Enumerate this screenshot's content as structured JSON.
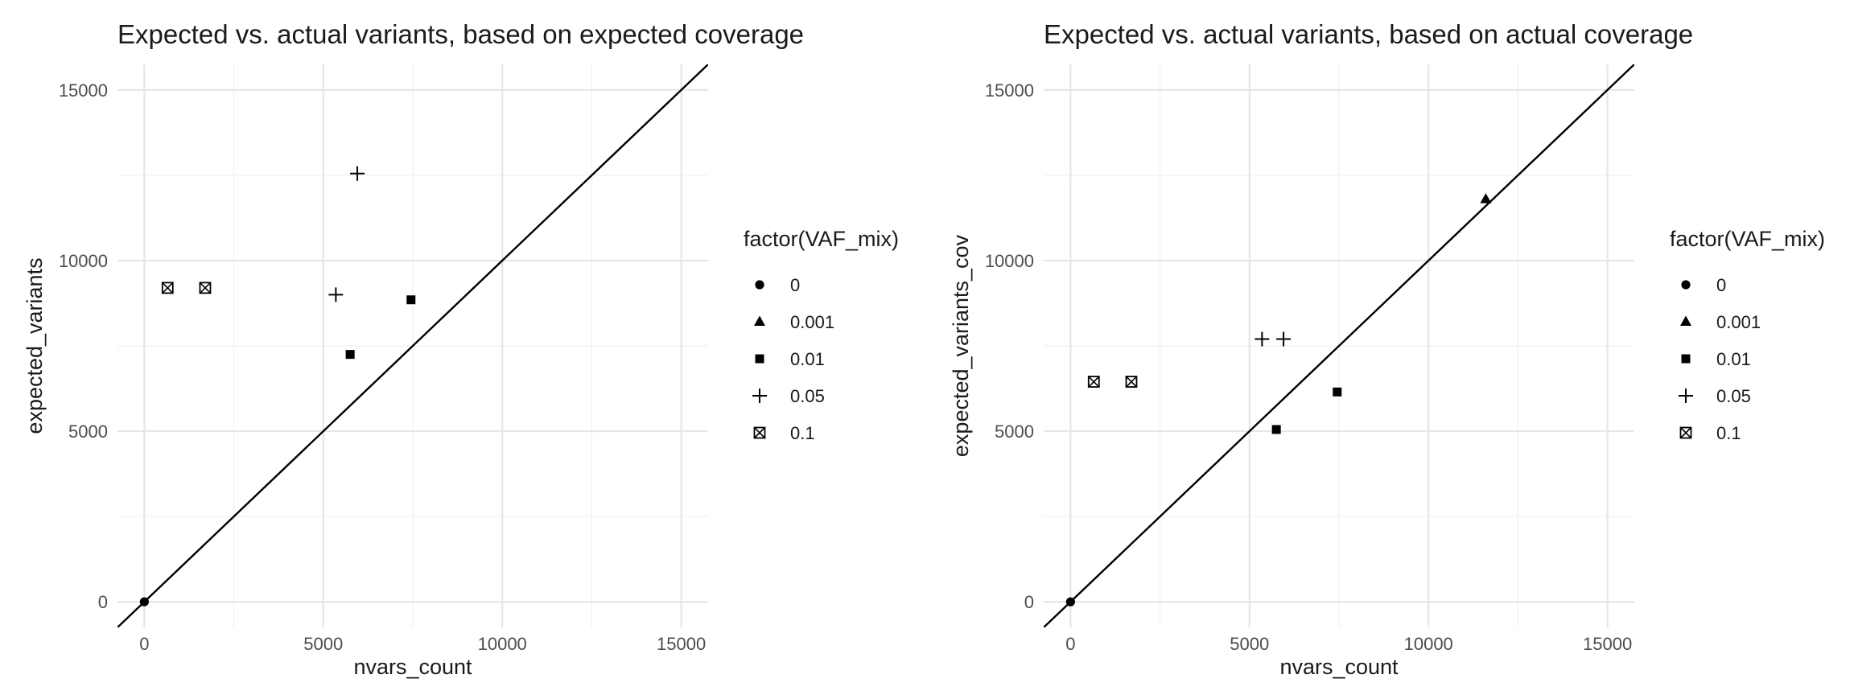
{
  "chart_data": [
    {
      "type": "scatter",
      "title": "Expected vs. actual variants, based on expected coverage",
      "xlabel": "nvars_count",
      "ylabel": "expected_variants",
      "xlim": [
        -750,
        15750
      ],
      "ylim": [
        -750,
        15750
      ],
      "xticks": [
        0,
        5000,
        10000,
        15000
      ],
      "yticks": [
        0,
        5000,
        10000,
        15000
      ],
      "grid": true,
      "reference_line": "y = x",
      "legend": {
        "title": "factor(VAF_mix)",
        "position": "right",
        "entries": [
          {
            "label": "0",
            "shape": "circle"
          },
          {
            "label": "0.001",
            "shape": "triangle"
          },
          {
            "label": "0.01",
            "shape": "square"
          },
          {
            "label": "0.05",
            "shape": "plus"
          },
          {
            "label": "0.1",
            "shape": "square-x"
          }
        ]
      },
      "series": [
        {
          "vaf": "0",
          "points": [
            {
              "x": 0,
              "y": 0
            }
          ]
        },
        {
          "vaf": "0.001",
          "points": []
        },
        {
          "vaf": "0.01",
          "points": [
            {
              "x": 5750,
              "y": 7250
            },
            {
              "x": 7450,
              "y": 8850
            }
          ]
        },
        {
          "vaf": "0.05",
          "points": [
            {
              "x": 5350,
              "y": 9000
            },
            {
              "x": 5950,
              "y": 12550
            }
          ]
        },
        {
          "vaf": "0.1",
          "points": [
            {
              "x": 650,
              "y": 9200
            },
            {
              "x": 1700,
              "y": 9200
            }
          ]
        }
      ]
    },
    {
      "type": "scatter",
      "title": "Expected vs. actual variants, based on actual coverage",
      "xlabel": "nvars_count",
      "ylabel": "expected_variants_cov",
      "xlim": [
        -750,
        15750
      ],
      "ylim": [
        -750,
        15750
      ],
      "xticks": [
        0,
        5000,
        10000,
        15000
      ],
      "yticks": [
        0,
        5000,
        10000,
        15000
      ],
      "grid": true,
      "reference_line": "y = x",
      "legend": {
        "title": "factor(VAF_mix)",
        "position": "right",
        "entries": [
          {
            "label": "0",
            "shape": "circle"
          },
          {
            "label": "0.001",
            "shape": "triangle"
          },
          {
            "label": "0.01",
            "shape": "square"
          },
          {
            "label": "0.05",
            "shape": "plus"
          },
          {
            "label": "0.1",
            "shape": "square-x"
          }
        ]
      },
      "series": [
        {
          "vaf": "0",
          "points": [
            {
              "x": 0,
              "y": 0
            }
          ]
        },
        {
          "vaf": "0.001",
          "points": [
            {
              "x": 11600,
              "y": 11800
            }
          ]
        },
        {
          "vaf": "0.01",
          "points": [
            {
              "x": 5750,
              "y": 5050
            },
            {
              "x": 7450,
              "y": 6150
            }
          ]
        },
        {
          "vaf": "0.05",
          "points": [
            {
              "x": 5350,
              "y": 7700
            },
            {
              "x": 5950,
              "y": 7700
            }
          ]
        },
        {
          "vaf": "0.1",
          "points": [
            {
              "x": 650,
              "y": 6450
            },
            {
              "x": 1700,
              "y": 6450
            }
          ]
        }
      ]
    }
  ]
}
